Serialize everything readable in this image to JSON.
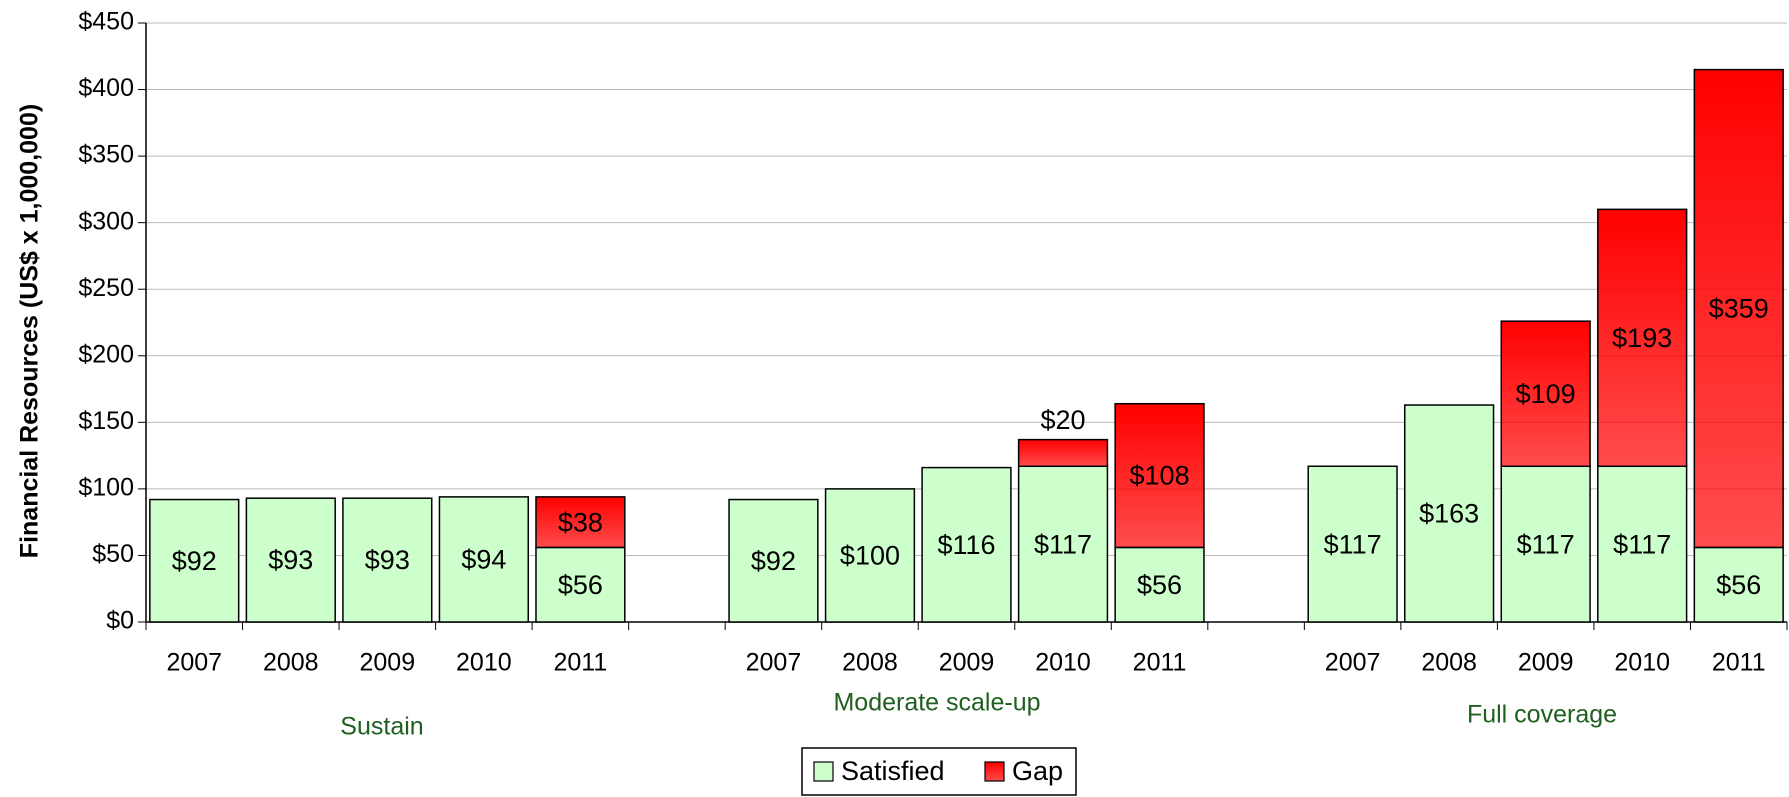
{
  "chart_data": {
    "type": "stacked_bar",
    "y_label": "Financial Resources (US$ x 1,000,000)",
    "categories": [
      "2007",
      "2008",
      "2009",
      "2010",
      "2011",
      null,
      "2007",
      "2008",
      "2009",
      "2010",
      "2011",
      null,
      "2007",
      "2008",
      "2009",
      "2010",
      "2011"
    ],
    "group_labels": [
      "Sustain",
      "Moderate scale-up",
      "Full coverage"
    ],
    "series": [
      {
        "name": "Satisfied",
        "color": "#ccffcc",
        "values": [
          92,
          93,
          93,
          94,
          56,
          null,
          92,
          100,
          116,
          117,
          56,
          null,
          117,
          163,
          117,
          117,
          56
        ],
        "value_labels": [
          "$92",
          "$93",
          "$93",
          "$94",
          "$56",
          null,
          "$92",
          "$100",
          "$116",
          "$117",
          "$56",
          null,
          "$117",
          "$163",
          "$117",
          "$117",
          "$56"
        ]
      },
      {
        "name": "Gap",
        "color": "#ff0000",
        "values": [
          null,
          null,
          null,
          null,
          38,
          null,
          null,
          null,
          null,
          20,
          108,
          null,
          null,
          null,
          109,
          193,
          359
        ],
        "value_labels": [
          null,
          null,
          null,
          null,
          "$38",
          null,
          null,
          null,
          null,
          "$20",
          "$108",
          null,
          null,
          null,
          "$109",
          "$193",
          "$359"
        ]
      }
    ],
    "ylim": [
      0,
      450
    ],
    "yticks": [
      {
        "value": 0,
        "label": "$0"
      },
      {
        "value": 50,
        "label": "$50"
      },
      {
        "value": 100,
        "label": "$100"
      },
      {
        "value": 150,
        "label": "$150"
      },
      {
        "value": 200,
        "label": "$200"
      },
      {
        "value": 250,
        "label": "$250"
      },
      {
        "value": 300,
        "label": "$300"
      },
      {
        "value": 350,
        "label": "$350"
      },
      {
        "value": 400,
        "label": "$400"
      },
      {
        "value": 450,
        "label": "$450"
      }
    ],
    "grid": true,
    "legend": "bottom"
  }
}
